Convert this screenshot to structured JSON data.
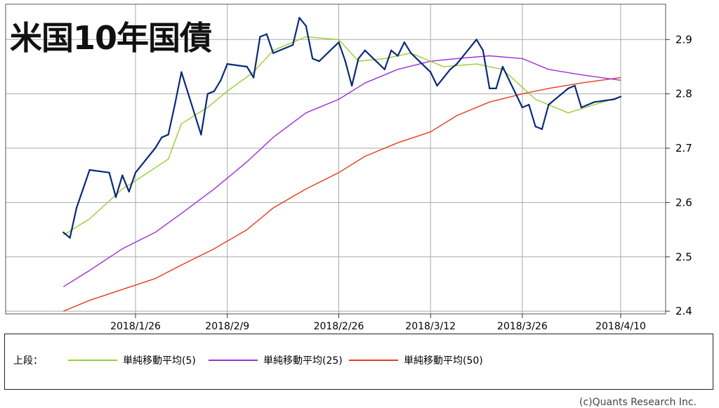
{
  "title": "米国10年国債",
  "chart_data": {
    "type": "line",
    "x_ticks": [
      "2018/1/26",
      "2018/2/9",
      "2018/2/26",
      "2018/3/12",
      "2018/3/26",
      "2018/4/10"
    ],
    "x_start": "2018/1/15",
    "x_end": "2018/4/10",
    "y_ticks": [
      "2.4",
      "2.5",
      "2.6",
      "2.7",
      "2.8",
      "2.9"
    ],
    "ylim": [
      2.395,
      2.965
    ],
    "grid": true,
    "series": [
      {
        "key": "price",
        "color": "#0a2a7a",
        "x": [
          "2018/1/15",
          "2018/1/16",
          "2018/1/17",
          "2018/1/18",
          "2018/1/19",
          "2018/1/22",
          "2018/1/23",
          "2018/1/24",
          "2018/1/25",
          "2018/1/26",
          "2018/1/29",
          "2018/1/30",
          "2018/1/31",
          "2018/2/1",
          "2018/2/2",
          "2018/2/5",
          "2018/2/6",
          "2018/2/7",
          "2018/2/8",
          "2018/2/9",
          "2018/2/12",
          "2018/2/13",
          "2018/2/14",
          "2018/2/15",
          "2018/2/16",
          "2018/2/19",
          "2018/2/20",
          "2018/2/21",
          "2018/2/22",
          "2018/2/23",
          "2018/2/26",
          "2018/2/27",
          "2018/2/28",
          "2018/3/1",
          "2018/3/2",
          "2018/3/5",
          "2018/3/6",
          "2018/3/7",
          "2018/3/8",
          "2018/3/9",
          "2018/3/12",
          "2018/3/13",
          "2018/3/14",
          "2018/3/15",
          "2018/3/16",
          "2018/3/19",
          "2018/3/20",
          "2018/3/21",
          "2018/3/22",
          "2018/3/23",
          "2018/3/26",
          "2018/3/27",
          "2018/3/28",
          "2018/3/29",
          "2018/3/30",
          "2018/4/2",
          "2018/4/3",
          "2018/4/4",
          "2018/4/5",
          "2018/4/6",
          "2018/4/9",
          "2018/4/10"
        ],
        "values": [
          2.545,
          2.535,
          2.59,
          2.625,
          2.66,
          2.655,
          2.61,
          2.65,
          2.62,
          2.655,
          2.7,
          2.72,
          2.725,
          2.78,
          2.84,
          2.725,
          2.8,
          2.805,
          2.825,
          2.855,
          2.85,
          2.83,
          2.905,
          2.91,
          2.875,
          2.89,
          2.94,
          2.925,
          2.865,
          2.86,
          2.895,
          2.86,
          2.815,
          2.865,
          2.88,
          2.845,
          2.88,
          2.87,
          2.895,
          2.875,
          2.84,
          2.815,
          2.83,
          2.845,
          2.855,
          2.9,
          2.88,
          2.81,
          2.81,
          2.85,
          2.775,
          2.78,
          2.74,
          2.735,
          2.78,
          2.81,
          2.815,
          2.775,
          2.78,
          2.785,
          2.79,
          2.795
        ]
      },
      {
        "key": "ma5",
        "color": "#9acd32",
        "x": [
          "2018/1/15",
          "2018/1/19",
          "2018/1/24",
          "2018/1/26",
          "2018/1/31",
          "2018/2/2",
          "2018/2/6",
          "2018/2/9",
          "2018/2/13",
          "2018/2/16",
          "2018/2/21",
          "2018/2/26",
          "2018/3/1",
          "2018/3/5",
          "2018/3/9",
          "2018/3/14",
          "2018/3/19",
          "2018/3/23",
          "2018/3/28",
          "2018/4/2",
          "2018/4/10"
        ],
        "values": [
          2.54,
          2.57,
          2.625,
          2.64,
          2.68,
          2.745,
          2.775,
          2.805,
          2.84,
          2.88,
          2.905,
          2.9,
          2.86,
          2.865,
          2.875,
          2.85,
          2.855,
          2.845,
          2.79,
          2.765,
          2.795
        ]
      },
      {
        "key": "ma25",
        "color": "#9b30d9",
        "x": [
          "2018/1/15",
          "2018/1/19",
          "2018/1/24",
          "2018/1/29",
          "2018/2/2",
          "2018/2/7",
          "2018/2/12",
          "2018/2/16",
          "2018/2/21",
          "2018/2/26",
          "2018/3/2",
          "2018/3/7",
          "2018/3/12",
          "2018/3/16",
          "2018/3/21",
          "2018/3/26",
          "2018/3/30",
          "2018/4/4",
          "2018/4/10"
        ],
        "values": [
          2.445,
          2.475,
          2.515,
          2.545,
          2.58,
          2.625,
          2.675,
          2.72,
          2.765,
          2.79,
          2.82,
          2.845,
          2.86,
          2.865,
          2.87,
          2.865,
          2.845,
          2.835,
          2.825
        ]
      },
      {
        "key": "ma50",
        "color": "#e53b1c",
        "x": [
          "2018/1/15",
          "2018/1/19",
          "2018/1/24",
          "2018/1/29",
          "2018/2/2",
          "2018/2/7",
          "2018/2/12",
          "2018/2/16",
          "2018/2/21",
          "2018/2/26",
          "2018/3/2",
          "2018/3/7",
          "2018/3/12",
          "2018/3/16",
          "2018/3/21",
          "2018/3/26",
          "2018/3/30",
          "2018/4/4",
          "2018/4/10"
        ],
        "values": [
          2.4,
          2.42,
          2.44,
          2.46,
          2.485,
          2.515,
          2.55,
          2.59,
          2.625,
          2.655,
          2.685,
          2.71,
          2.73,
          2.76,
          2.785,
          2.8,
          2.81,
          2.82,
          2.83
        ]
      }
    ]
  },
  "legend": {
    "heading": "上段：",
    "items": [
      {
        "label": "単純移動平均(5)",
        "color": "#9acd32"
      },
      {
        "label": "単純移動平均(25)",
        "color": "#9b30d9"
      },
      {
        "label": "単純移動平均(50)",
        "color": "#e53b1c"
      }
    ]
  },
  "credit": "(c)Quants Research Inc."
}
